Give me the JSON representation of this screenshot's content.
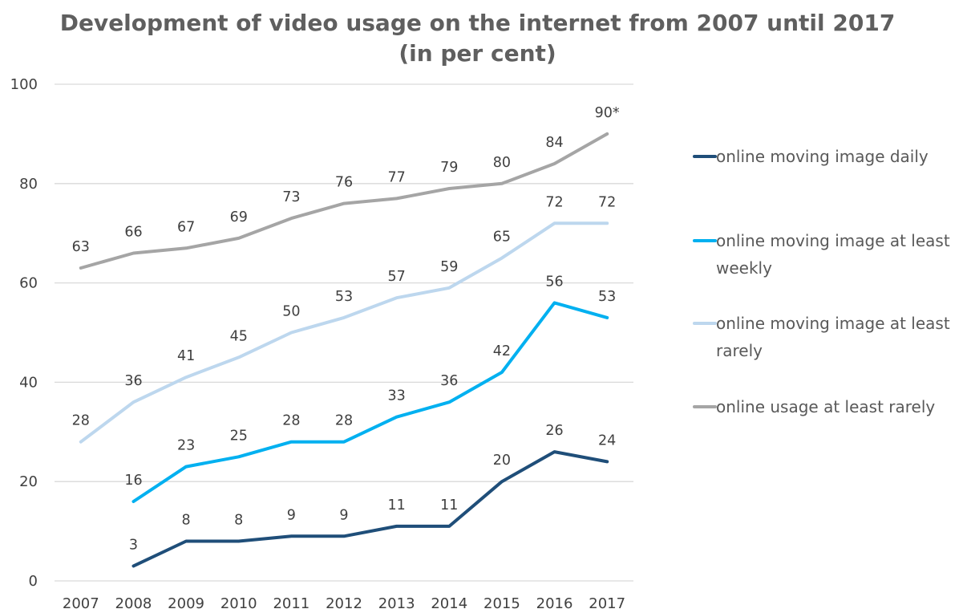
{
  "chart_data": {
    "type": "line",
    "title_line1": "Development of video usage on the internet from 2007 until 2017",
    "title_line2": "(in per cent)",
    "xlabel": "",
    "ylabel": "",
    "categories": [
      "2007",
      "2008",
      "2009",
      "2010",
      "2011",
      "2012",
      "2013",
      "2014",
      "2015",
      "2016",
      "2017"
    ],
    "ylim": [
      0,
      100
    ],
    "yticks": [
      0,
      20,
      40,
      60,
      80,
      100
    ],
    "grid": true,
    "legend_position": "right",
    "series": [
      {
        "name": "online moving image daily",
        "legend_lines": [
          "online moving image daily"
        ],
        "color": "#1f4e79",
        "values": [
          null,
          3,
          8,
          8,
          9,
          9,
          11,
          11,
          20,
          26,
          24
        ],
        "labels": [
          "",
          "3",
          "8",
          "8",
          "9",
          "9",
          "11",
          "11",
          "20",
          "26",
          "24"
        ]
      },
      {
        "name": "online moving image at least weekly",
        "legend_lines": [
          "online moving image at least",
          "weekly"
        ],
        "color": "#00b0f0",
        "values": [
          null,
          16,
          23,
          25,
          28,
          28,
          33,
          36,
          42,
          56,
          53
        ],
        "labels": [
          "",
          "16",
          "23",
          "25",
          "28",
          "28",
          "33",
          "36",
          "42",
          "56",
          "53"
        ]
      },
      {
        "name": "online moving image at least rarely",
        "legend_lines": [
          "online moving image at least",
          "rarely"
        ],
        "color": "#bdd7ee",
        "values": [
          28,
          36,
          41,
          45,
          50,
          53,
          57,
          59,
          65,
          72,
          72
        ],
        "labels": [
          "28",
          "36",
          "41",
          "45",
          "50",
          "53",
          "57",
          "59",
          "65",
          "72",
          "72"
        ]
      },
      {
        "name": "online usage at least rarely",
        "legend_lines": [
          "online usage at least rarely"
        ],
        "color": "#a5a5a5",
        "values": [
          63,
          66,
          67,
          69,
          73,
          76,
          77,
          79,
          80,
          84,
          90
        ],
        "labels": [
          "63",
          "66",
          "67",
          "69",
          "73",
          "76",
          "77",
          "79",
          "80",
          "84",
          "90*"
        ]
      }
    ]
  }
}
